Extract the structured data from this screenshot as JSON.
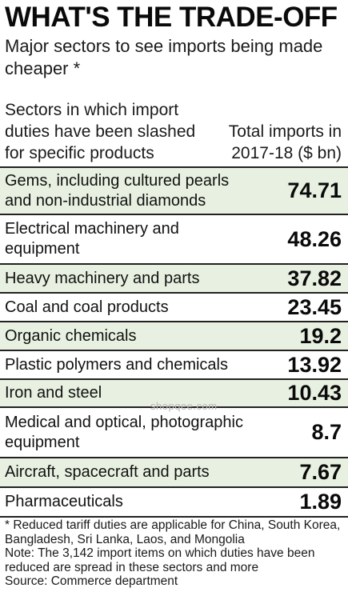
{
  "title": "WHAT'S THE TRADE-OFF",
  "subtitle": "Major sectors to see imports being made cheaper *",
  "header": {
    "left": "Sectors in which import duties have been slashed for specific products",
    "right": "Total imports in 2017-18 ($ bn)"
  },
  "rows": [
    {
      "sector": "Gems, including cultured pearls and non-industrial diamonds",
      "value": "74.71"
    },
    {
      "sector": "Electrical machinery and equipment",
      "value": "48.26"
    },
    {
      "sector": "Heavy machinery and parts",
      "value": "37.82"
    },
    {
      "sector": "Coal and coal products",
      "value": "23.45"
    },
    {
      "sector": "Organic chemicals",
      "value": "19.2"
    },
    {
      "sector": "Plastic polymers and chemicals",
      "value": "13.92"
    },
    {
      "sector": "Iron and steel",
      "value": "10.43"
    },
    {
      "sector": "Medical and optical, photographic equipment",
      "value": "8.7"
    },
    {
      "sector": "Aircraft, spacecraft and parts",
      "value": "7.67"
    },
    {
      "sector": "Pharmaceuticals",
      "value": "1.89"
    }
  ],
  "footnotes": {
    "tariff": "* Reduced tariff duties are applicable for China, South Korea, Bangladesh, Sri Lanka, Laos, and Mongolia",
    "note": "Note: The 3,142 import items on which duties have been reduced are spread in these sectors and more",
    "source": "Source: Commerce department"
  },
  "watermark": "shopqee.com"
}
